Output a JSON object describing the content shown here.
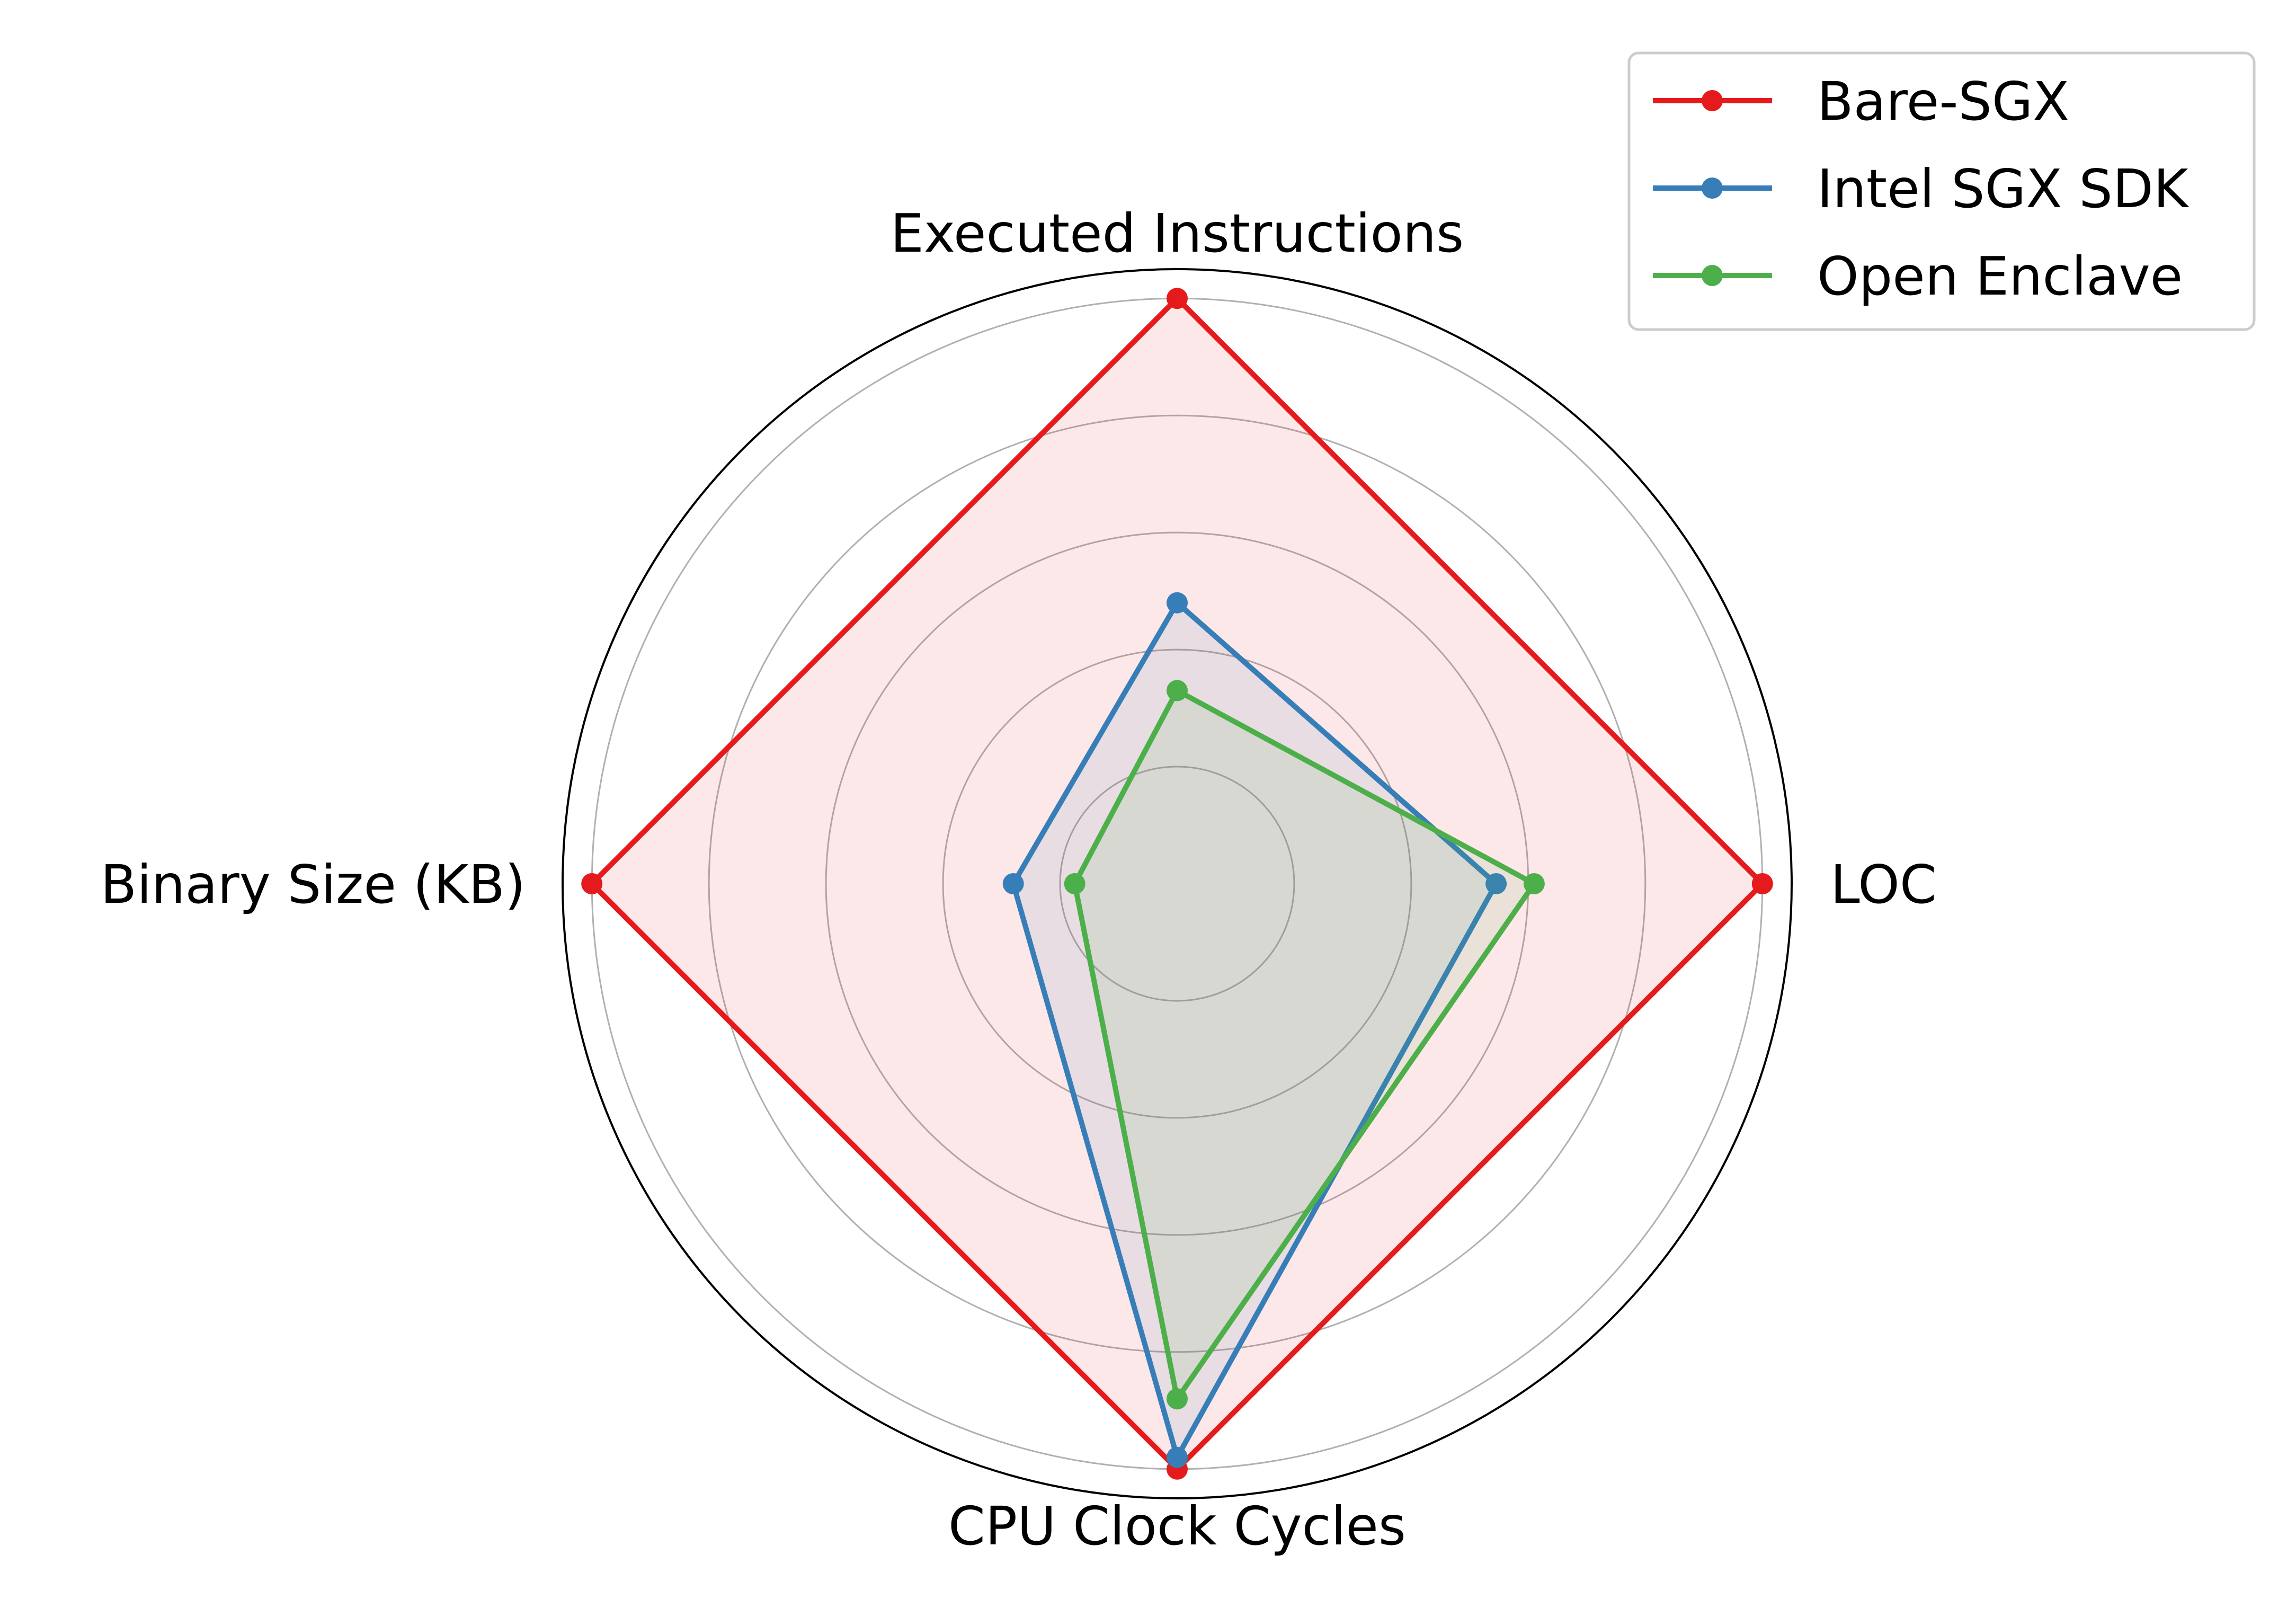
{
  "chart_data": {
    "type": "radar",
    "axes": [
      "Executed Instructions",
      "LOC",
      "CPU Clock Cycles",
      "Binary Size (KB)"
    ],
    "rlim": [
      0,
      1.05
    ],
    "rgrid": [
      0.2,
      0.4,
      0.6,
      0.8,
      1.0
    ],
    "grid": true,
    "legend_position": "top-right",
    "series": [
      {
        "name": "Bare-SGX",
        "color": "#e41a1c",
        "fill_alpha": 0.1,
        "values": [
          1.0,
          1.0,
          1.0,
          1.0
        ]
      },
      {
        "name": "Intel SGX SDK",
        "color": "#377eb8",
        "fill_alpha": 0.1,
        "values": [
          0.48,
          0.545,
          0.98,
          0.28
        ]
      },
      {
        "name": "Open Enclave",
        "color": "#4daf4a",
        "fill_alpha": 0.1,
        "values": [
          0.33,
          0.61,
          0.88,
          0.175
        ]
      }
    ]
  }
}
